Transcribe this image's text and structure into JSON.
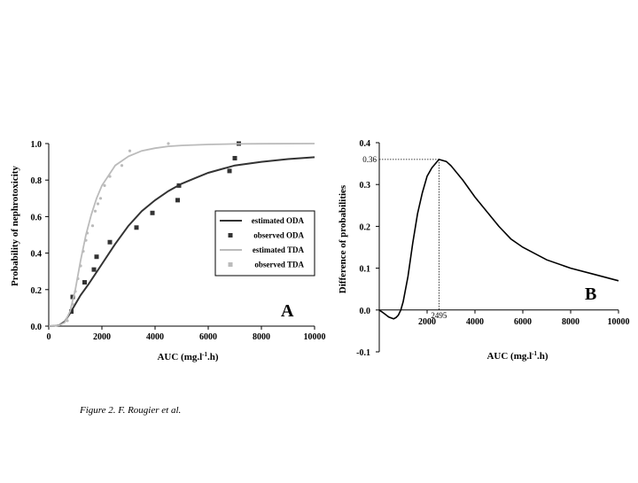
{
  "caption": "Figure 2. F. Rougier et al.",
  "chart_data": [
    {
      "panel": "A",
      "type": "line",
      "xlabel": "AUC (mg.l-1.h)",
      "ylabel": "Probability of nephrotoxicity",
      "xlim": [
        0,
        10000
      ],
      "ylim": [
        0,
        1.0
      ],
      "x_ticks": [
        0,
        2000,
        4000,
        6000,
        8000,
        10000
      ],
      "x_tick_labels": [
        "0",
        "2000",
        "4000",
        "6000",
        "8000",
        "10000"
      ],
      "y_ticks": [
        0,
        0.2,
        0.4,
        0.6,
        0.8,
        1.0
      ],
      "y_tick_labels": [
        "0.0",
        "0.2",
        "0.4",
        "0.6",
        "0.8",
        "1.0"
      ],
      "grid": false,
      "legend_position": "right",
      "colors": {
        "oda": "#333333",
        "tda": "#bbbbbb"
      },
      "series": [
        {
          "name": "estimated ODA",
          "kind": "line",
          "x": [
            0,
            200,
            400,
            600,
            800,
            1000,
            1200,
            1500,
            2000,
            2500,
            3000,
            3500,
            4000,
            4500,
            5000,
            5500,
            6000,
            7000,
            8000,
            9000,
            10000
          ],
          "y": [
            0,
            0.001,
            0.006,
            0.025,
            0.07,
            0.12,
            0.17,
            0.23,
            0.34,
            0.45,
            0.55,
            0.63,
            0.69,
            0.74,
            0.78,
            0.81,
            0.84,
            0.88,
            0.9,
            0.915,
            0.925
          ]
        },
        {
          "name": "observed ODA",
          "kind": "scatter",
          "x": [
            850,
            900,
            1350,
            1700,
            1800,
            2300,
            3300,
            3900,
            4850,
            4900,
            6800,
            7000,
            7150
          ],
          "y": [
            0.08,
            0.16,
            0.24,
            0.31,
            0.38,
            0.46,
            0.54,
            0.62,
            0.69,
            0.77,
            0.85,
            0.92,
            1.0
          ]
        },
        {
          "name": "estimated TDA",
          "kind": "line",
          "x": [
            0,
            200,
            400,
            600,
            800,
            1000,
            1200,
            1400,
            1600,
            1800,
            2000,
            2500,
            3000,
            3500,
            4000,
            4500,
            5000,
            6000,
            7000,
            8000,
            10000
          ],
          "y": [
            0,
            0.001,
            0.005,
            0.02,
            0.08,
            0.2,
            0.36,
            0.5,
            0.61,
            0.7,
            0.77,
            0.88,
            0.93,
            0.96,
            0.975,
            0.985,
            0.99,
            0.995,
            0.998,
            0.999,
            1.0
          ]
        },
        {
          "name": "observed TDA",
          "kind": "scatter",
          "x": [
            700,
            900,
            1000,
            1100,
            1200,
            1300,
            1400,
            1450,
            1650,
            1750,
            1850,
            1950,
            2100,
            2300,
            2750,
            3050,
            4500
          ],
          "y": [
            0.03,
            0.12,
            0.19,
            0.26,
            0.33,
            0.41,
            0.47,
            0.51,
            0.55,
            0.63,
            0.67,
            0.7,
            0.77,
            0.82,
            0.88,
            0.96,
            1.0
          ]
        }
      ],
      "annotations": []
    },
    {
      "panel": "B",
      "type": "line",
      "xlabel": "AUC (mg.l-1.h)",
      "ylabel": "Difference of probabilities",
      "xlim": [
        0,
        10000
      ],
      "ylim": [
        -0.1,
        0.4
      ],
      "x_ticks": [
        2000,
        4000,
        6000,
        8000,
        10000
      ],
      "x_tick_labels": [
        "2000",
        "4000",
        "6000",
        "8000",
        "10000"
      ],
      "y_ticks": [
        -0.1,
        0.0,
        0.1,
        0.2,
        0.3,
        0.4
      ],
      "y_tick_labels": [
        "-0.1",
        "0.0",
        "0.1",
        "0.2",
        "0.3",
        "0.4"
      ],
      "grid": false,
      "colors": {
        "line": "#000000",
        "guide": "#000000"
      },
      "series": [
        {
          "name": "",
          "kind": "line",
          "x": [
            0,
            200,
            400,
            600,
            700,
            800,
            900,
            1000,
            1200,
            1400,
            1600,
            1800,
            2000,
            2200,
            2495,
            2800,
            3000,
            3500,
            4000,
            4500,
            5000,
            5500,
            6000,
            7000,
            8000,
            9000,
            10000
          ],
          "y": [
            0,
            -0.008,
            -0.017,
            -0.021,
            -0.018,
            -0.012,
            0.0,
            0.02,
            0.08,
            0.16,
            0.23,
            0.28,
            0.32,
            0.34,
            0.36,
            0.355,
            0.345,
            0.31,
            0.27,
            0.235,
            0.2,
            0.17,
            0.15,
            0.12,
            0.1,
            0.085,
            0.07
          ]
        }
      ],
      "annotations": [
        {
          "type": "max_point",
          "x": 2495,
          "y": 0.36,
          "x_label": "2495",
          "y_label": "0.36"
        }
      ]
    }
  ],
  "labels": {
    "a_ylabel": "Probability of nephrotoxicity",
    "a_xlabel_main": "AUC (mg.l",
    "a_xlabel_sup": "-1",
    "a_xlabel_tail": ".h)",
    "b_ylabel": "Difference of probabilities",
    "b_xlabel_main": "AUC (mg.l",
    "b_xlabel_sup": "-1",
    "b_xlabel_tail": ".h)",
    "panel_a": "A",
    "panel_b": "B"
  }
}
